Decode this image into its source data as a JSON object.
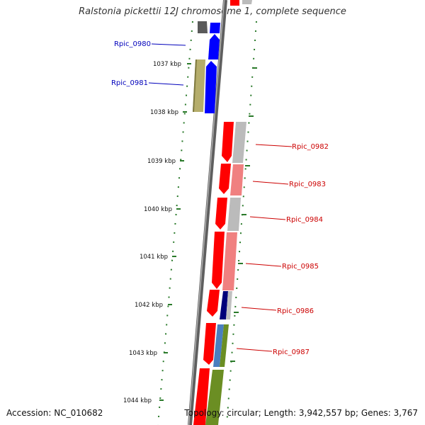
{
  "title": "Ralstonia pickettii 12J chromosome 1, complete sequence",
  "footer": {
    "accession": "Accession: NC_010682",
    "topology": "Topology: circular; Length: 3,942,557 bp; Genes: 3,767"
  },
  "colors": {
    "plus_label": "#0000bb",
    "minus_label": "#cc0000",
    "tick": "#2a7a2a",
    "backbone": "#7d7d7d",
    "cds_red": "#ff0000",
    "cds_blue": "#0000ff",
    "cds_gray": "#bbbbbb",
    "olive": "#b5ad6b",
    "salmon": "#f08080",
    "navy": "#00007a",
    "steel": "#4a7fbf",
    "green": "#6b8e23"
  },
  "kbp_labels": [
    "1037 kbp",
    "1038 kbp",
    "1039 kbp",
    "1040 kbp",
    "1041 kbp",
    "1042 kbp",
    "1043 kbp",
    "1044 kbp"
  ],
  "genes_plus": [
    {
      "name": "Rpic_0980"
    },
    {
      "name": "Rpic_0981"
    }
  ],
  "genes_minus": [
    {
      "name": "Rpic_0982"
    },
    {
      "name": "Rpic_0983"
    },
    {
      "name": "Rpic_0984"
    },
    {
      "name": "Rpic_0985"
    },
    {
      "name": "Rpic_0986"
    },
    {
      "name": "Rpic_0987"
    }
  ]
}
